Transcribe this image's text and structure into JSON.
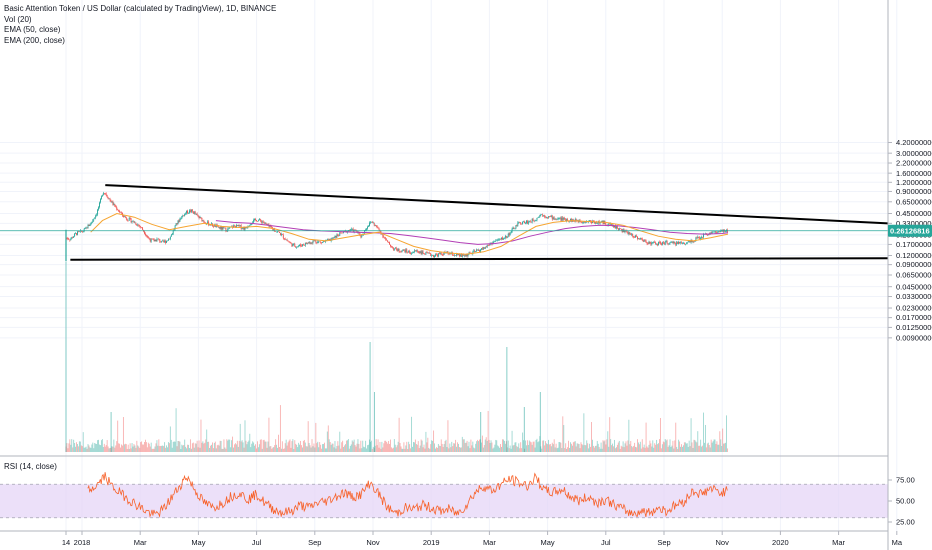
{
  "legend": {
    "title": "Basic Attention Token / US Dollar (calculated by TradingView), 1D, BINANCE",
    "vol": "Vol (20)",
    "ema50": "EMA (50, close)",
    "ema200": "EMA (200, close)",
    "rsi": "RSI (14, close)"
  },
  "current_price_label": "0.26126816",
  "colors": {
    "up": "#26a69a",
    "down": "#ef5350",
    "ema50": "#f6a531",
    "ema200": "#b23eb5",
    "rsi_line": "#f7622b",
    "rsi_band": "#e6d6f7",
    "price_line": "#26a69a",
    "trendline": "#000000"
  },
  "chart_data": {
    "type": "line",
    "title": "Basic Attention Token / US Dollar (calculated by TradingView), 1D, BINANCE",
    "y_scale": "log",
    "price_ticks": [
      "4.20000000",
      "3.00000000",
      "2.20000000",
      "1.60000000",
      "1.20000000",
      "0.90000000",
      "0.65000000",
      "0.45000000",
      "0.33000000",
      "0.23000000",
      "0.17000000",
      "0.12000000",
      "0.09000000",
      "0.06500000",
      "0.04500000",
      "0.03300000",
      "0.02300000",
      "0.01700000",
      "0.01250000",
      "0.00900000"
    ],
    "price_tick_values": [
      4.2,
      3.0,
      2.2,
      1.6,
      1.2,
      0.9,
      0.65,
      0.45,
      0.33,
      0.23,
      0.17,
      0.12,
      0.09,
      0.065,
      0.045,
      0.033,
      0.023,
      0.017,
      0.0125,
      0.009
    ],
    "time_ticks": [
      "14",
      "2018",
      "Mar",
      "May",
      "Jul",
      "Sep",
      "Nov",
      "2019",
      "Mar",
      "May",
      "Jul",
      "Sep",
      "Nov",
      "2020",
      "Mar",
      "Ma"
    ],
    "time_tick_months": [
      -0.55,
      0,
      2,
      4,
      6,
      8,
      10,
      12,
      14,
      16,
      18,
      20,
      22,
      24,
      26,
      28
    ],
    "rsi_ticks": [
      "75.00",
      "50.00",
      "25.00"
    ],
    "rsi_tick_values": [
      75,
      50,
      25
    ],
    "rsi_band": [
      30,
      70
    ],
    "current_price": 0.26126816,
    "price_path": [
      [
        -0.55,
        0.21
      ],
      [
        -0.4,
        0.2
      ],
      [
        -0.2,
        0.24
      ],
      [
        0.05,
        0.26
      ],
      [
        0.3,
        0.33
      ],
      [
        0.5,
        0.45
      ],
      [
        0.6,
        0.6
      ],
      [
        0.72,
        0.9
      ],
      [
        0.8,
        0.85
      ],
      [
        0.95,
        0.7
      ],
      [
        1.1,
        0.58
      ],
      [
        1.25,
        0.5
      ],
      [
        1.4,
        0.42
      ],
      [
        1.55,
        0.38
      ],
      [
        1.7,
        0.36
      ],
      [
        1.85,
        0.33
      ],
      [
        2.0,
        0.3
      ],
      [
        2.15,
        0.25
      ],
      [
        2.3,
        0.2
      ],
      [
        2.45,
        0.19
      ],
      [
        2.6,
        0.2
      ],
      [
        2.75,
        0.18
      ],
      [
        2.9,
        0.19
      ],
      [
        3.05,
        0.22
      ],
      [
        3.2,
        0.3
      ],
      [
        3.4,
        0.4
      ],
      [
        3.6,
        0.47
      ],
      [
        3.75,
        0.49
      ],
      [
        3.85,
        0.46
      ],
      [
        4.0,
        0.4
      ],
      [
        4.2,
        0.35
      ],
      [
        4.4,
        0.32
      ],
      [
        4.6,
        0.3
      ],
      [
        4.8,
        0.28
      ],
      [
        5.0,
        0.27
      ],
      [
        5.2,
        0.3
      ],
      [
        5.4,
        0.3
      ],
      [
        5.6,
        0.28
      ],
      [
        5.8,
        0.34
      ],
      [
        6.0,
        0.37
      ],
      [
        6.2,
        0.35
      ],
      [
        6.4,
        0.3
      ],
      [
        6.6,
        0.27
      ],
      [
        6.8,
        0.24
      ],
      [
        7.0,
        0.2
      ],
      [
        7.2,
        0.17
      ],
      [
        7.4,
        0.16
      ],
      [
        7.6,
        0.17
      ],
      [
        7.8,
        0.18
      ],
      [
        8.0,
        0.19
      ],
      [
        8.2,
        0.18
      ],
      [
        8.4,
        0.19
      ],
      [
        8.6,
        0.2
      ],
      [
        8.8,
        0.23
      ],
      [
        9.0,
        0.25
      ],
      [
        9.2,
        0.27
      ],
      [
        9.4,
        0.26
      ],
      [
        9.6,
        0.22
      ],
      [
        9.8,
        0.3
      ],
      [
        9.95,
        0.35
      ],
      [
        10.1,
        0.3
      ],
      [
        10.3,
        0.24
      ],
      [
        10.5,
        0.18
      ],
      [
        10.7,
        0.15
      ],
      [
        10.9,
        0.14
      ],
      [
        11.1,
        0.14
      ],
      [
        11.3,
        0.13
      ],
      [
        11.5,
        0.14
      ],
      [
        11.7,
        0.13
      ],
      [
        11.9,
        0.125
      ],
      [
        12.1,
        0.12
      ],
      [
        12.3,
        0.125
      ],
      [
        12.5,
        0.13
      ],
      [
        12.7,
        0.125
      ],
      [
        12.9,
        0.12
      ],
      [
        13.05,
        0.118
      ],
      [
        13.2,
        0.122
      ],
      [
        13.4,
        0.13
      ],
      [
        13.6,
        0.14
      ],
      [
        13.8,
        0.15
      ],
      [
        14.0,
        0.17
      ],
      [
        14.2,
        0.19
      ],
      [
        14.4,
        0.2
      ],
      [
        14.6,
        0.22
      ],
      [
        14.8,
        0.27
      ],
      [
        15.0,
        0.33
      ],
      [
        15.2,
        0.34
      ],
      [
        15.4,
        0.35
      ],
      [
        15.6,
        0.38
      ],
      [
        15.75,
        0.44
      ],
      [
        15.9,
        0.42
      ],
      [
        16.1,
        0.4
      ],
      [
        16.3,
        0.38
      ],
      [
        16.5,
        0.38
      ],
      [
        16.7,
        0.37
      ],
      [
        16.9,
        0.36
      ],
      [
        17.1,
        0.36
      ],
      [
        17.3,
        0.35
      ],
      [
        17.5,
        0.35
      ],
      [
        17.7,
        0.34
      ],
      [
        17.9,
        0.34
      ],
      [
        18.1,
        0.32
      ],
      [
        18.3,
        0.3
      ],
      [
        18.5,
        0.27
      ],
      [
        18.7,
        0.25
      ],
      [
        18.9,
        0.23
      ],
      [
        19.1,
        0.21
      ],
      [
        19.3,
        0.19
      ],
      [
        19.5,
        0.18
      ],
      [
        19.7,
        0.175
      ],
      [
        19.9,
        0.175
      ],
      [
        20.1,
        0.18
      ],
      [
        20.3,
        0.175
      ],
      [
        20.5,
        0.18
      ],
      [
        20.7,
        0.175
      ],
      [
        20.9,
        0.19
      ],
      [
        21.1,
        0.2
      ],
      [
        21.3,
        0.22
      ],
      [
        21.5,
        0.24
      ],
      [
        21.7,
        0.25
      ],
      [
        21.9,
        0.25
      ],
      [
        22.1,
        0.26
      ],
      [
        22.2,
        0.262
      ]
    ],
    "series": [
      {
        "name": "EMA (50, close)",
        "path": [
          [
            0.3,
            0.25
          ],
          [
            0.7,
            0.36
          ],
          [
            1.2,
            0.45
          ],
          [
            1.8,
            0.4
          ],
          [
            2.4,
            0.32
          ],
          [
            3.0,
            0.27
          ],
          [
            3.6,
            0.3
          ],
          [
            4.2,
            0.33
          ],
          [
            4.8,
            0.3
          ],
          [
            5.4,
            0.29
          ],
          [
            6.0,
            0.3
          ],
          [
            6.6,
            0.28
          ],
          [
            7.2,
            0.24
          ],
          [
            7.8,
            0.2
          ],
          [
            8.4,
            0.19
          ],
          [
            9.0,
            0.21
          ],
          [
            9.6,
            0.23
          ],
          [
            10.2,
            0.25
          ],
          [
            10.8,
            0.2
          ],
          [
            11.4,
            0.16
          ],
          [
            12.0,
            0.14
          ],
          [
            12.6,
            0.13
          ],
          [
            13.2,
            0.125
          ],
          [
            13.8,
            0.135
          ],
          [
            14.4,
            0.16
          ],
          [
            15.0,
            0.22
          ],
          [
            15.6,
            0.3
          ],
          [
            16.2,
            0.34
          ],
          [
            16.8,
            0.36
          ],
          [
            17.4,
            0.35
          ],
          [
            18.0,
            0.34
          ],
          [
            18.6,
            0.31
          ],
          [
            19.2,
            0.26
          ],
          [
            19.8,
            0.22
          ],
          [
            20.4,
            0.2
          ],
          [
            21.0,
            0.19
          ],
          [
            21.6,
            0.21
          ],
          [
            22.2,
            0.235
          ]
        ]
      },
      {
        "name": "EMA (200, close)",
        "path": [
          [
            4.6,
            0.36
          ],
          [
            5.2,
            0.34
          ],
          [
            5.8,
            0.33
          ],
          [
            6.4,
            0.31
          ],
          [
            7.0,
            0.29
          ],
          [
            7.6,
            0.27
          ],
          [
            8.2,
            0.26
          ],
          [
            8.8,
            0.255
          ],
          [
            9.4,
            0.25
          ],
          [
            10.0,
            0.245
          ],
          [
            10.6,
            0.24
          ],
          [
            11.2,
            0.225
          ],
          [
            11.8,
            0.21
          ],
          [
            12.4,
            0.195
          ],
          [
            13.0,
            0.18
          ],
          [
            13.6,
            0.17
          ],
          [
            14.2,
            0.175
          ],
          [
            14.8,
            0.19
          ],
          [
            15.4,
            0.22
          ],
          [
            16.0,
            0.25
          ],
          [
            16.6,
            0.28
          ],
          [
            17.2,
            0.3
          ],
          [
            17.8,
            0.31
          ],
          [
            18.4,
            0.305
          ],
          [
            19.0,
            0.29
          ],
          [
            19.6,
            0.27
          ],
          [
            20.2,
            0.25
          ],
          [
            20.8,
            0.24
          ],
          [
            21.4,
            0.235
          ],
          [
            22.0,
            0.24
          ],
          [
            22.2,
            0.245
          ]
        ]
      }
    ],
    "trendlines": [
      {
        "from": [
          0.8,
          1.1
        ],
        "to": [
          28.5,
          0.33
        ]
      },
      {
        "from": [
          -0.4,
          0.105
        ],
        "to": [
          28.5,
          0.11
        ]
      }
    ],
    "rsi_path": [
      [
        0.2,
        62
      ],
      [
        0.5,
        68
      ],
      [
        0.8,
        80
      ],
      [
        1.0,
        68
      ],
      [
        1.3,
        60
      ],
      [
        1.6,
        52
      ],
      [
        1.9,
        45
      ],
      [
        2.2,
        38
      ],
      [
        2.5,
        33
      ],
      [
        2.8,
        40
      ],
      [
        3.1,
        55
      ],
      [
        3.4,
        70
      ],
      [
        3.6,
        80
      ],
      [
        3.9,
        62
      ],
      [
        4.2,
        48
      ],
      [
        4.5,
        42
      ],
      [
        4.8,
        47
      ],
      [
        5.1,
        55
      ],
      [
        5.4,
        60
      ],
      [
        5.7,
        52
      ],
      [
        6.0,
        58
      ],
      [
        6.3,
        47
      ],
      [
        6.6,
        40
      ],
      [
        6.9,
        36
      ],
      [
        7.2,
        38
      ],
      [
        7.5,
        45
      ],
      [
        7.8,
        42
      ],
      [
        8.1,
        48
      ],
      [
        8.4,
        50
      ],
      [
        8.7,
        55
      ],
      [
        9.0,
        60
      ],
      [
        9.3,
        55
      ],
      [
        9.6,
        58
      ],
      [
        9.9,
        72
      ],
      [
        10.2,
        58
      ],
      [
        10.5,
        42
      ],
      [
        10.8,
        35
      ],
      [
        11.1,
        42
      ],
      [
        11.4,
        40
      ],
      [
        11.7,
        45
      ],
      [
        12.0,
        42
      ],
      [
        12.3,
        38
      ],
      [
        12.6,
        40
      ],
      [
        12.9,
        35
      ],
      [
        13.2,
        45
      ],
      [
        13.5,
        60
      ],
      [
        13.8,
        68
      ],
      [
        14.1,
        62
      ],
      [
        14.4,
        70
      ],
      [
        14.7,
        76
      ],
      [
        15.0,
        72
      ],
      [
        15.3,
        68
      ],
      [
        15.6,
        78
      ],
      [
        15.9,
        62
      ],
      [
        16.2,
        60
      ],
      [
        16.5,
        64
      ],
      [
        16.8,
        55
      ],
      [
        17.1,
        50
      ],
      [
        17.4,
        55
      ],
      [
        17.7,
        48
      ],
      [
        18.0,
        52
      ],
      [
        18.3,
        45
      ],
      [
        18.6,
        40
      ],
      [
        18.9,
        35
      ],
      [
        19.2,
        38
      ],
      [
        19.5,
        36
      ],
      [
        19.8,
        42
      ],
      [
        20.1,
        38
      ],
      [
        20.4,
        45
      ],
      [
        20.7,
        50
      ],
      [
        21.0,
        62
      ],
      [
        21.3,
        58
      ],
      [
        21.6,
        65
      ],
      [
        21.9,
        60
      ],
      [
        22.2,
        62
      ]
    ]
  }
}
